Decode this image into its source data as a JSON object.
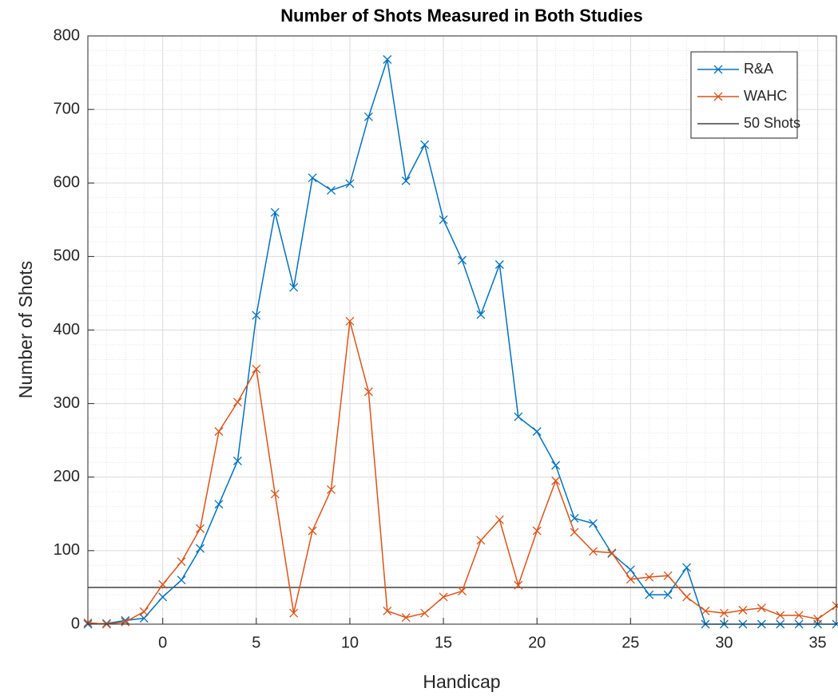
{
  "chart_data": {
    "type": "line",
    "title": "Number of Shots Measured in Both Studies",
    "x_label": "Handicap",
    "y_label": "Number of Shots",
    "x": [
      -4,
      -3,
      -2,
      -1,
      0,
      1,
      2,
      3,
      4,
      5,
      6,
      7,
      8,
      9,
      10,
      11,
      12,
      13,
      14,
      15,
      16,
      17,
      18,
      19,
      20,
      21,
      22,
      23,
      24,
      25,
      26,
      27,
      28,
      29,
      30,
      31,
      32,
      33,
      34,
      35,
      36
    ],
    "series": [
      {
        "name": "R&A",
        "color": "#0072bd",
        "marker": "x",
        "values": [
          0,
          1,
          5,
          8,
          37,
          60,
          103,
          163,
          222,
          420,
          560,
          458,
          607,
          590,
          599,
          690,
          768,
          603,
          652,
          550,
          495,
          421,
          489,
          282,
          262,
          216,
          144,
          137,
          96,
          74,
          40,
          40,
          77,
          0,
          0,
          0,
          0,
          0,
          0,
          0,
          0
        ]
      },
      {
        "name": "WAHC",
        "color": "#d95319",
        "marker": "x",
        "values": [
          2,
          0,
          3,
          17,
          54,
          85,
          130,
          262,
          302,
          347,
          177,
          15,
          127,
          183,
          412,
          316,
          18,
          9,
          15,
          37,
          45,
          114,
          142,
          53,
          127,
          195,
          125,
          99,
          97,
          61,
          64,
          66,
          37,
          18,
          15,
          19,
          22,
          12,
          12,
          7,
          25
        ]
      }
    ],
    "hlines": [
      {
        "name": "50 Shots",
        "y": 50,
        "color": "#404040"
      }
    ],
    "xlim": [
      -4,
      36
    ],
    "xticks": [
      0,
      5,
      10,
      15,
      20,
      25,
      30,
      35
    ],
    "ylim": [
      0,
      800
    ],
    "yticks": [
      0,
      100,
      200,
      300,
      400,
      500,
      600,
      700,
      800
    ],
    "grid": true,
    "minor_grid": true,
    "legend": "upper right"
  }
}
